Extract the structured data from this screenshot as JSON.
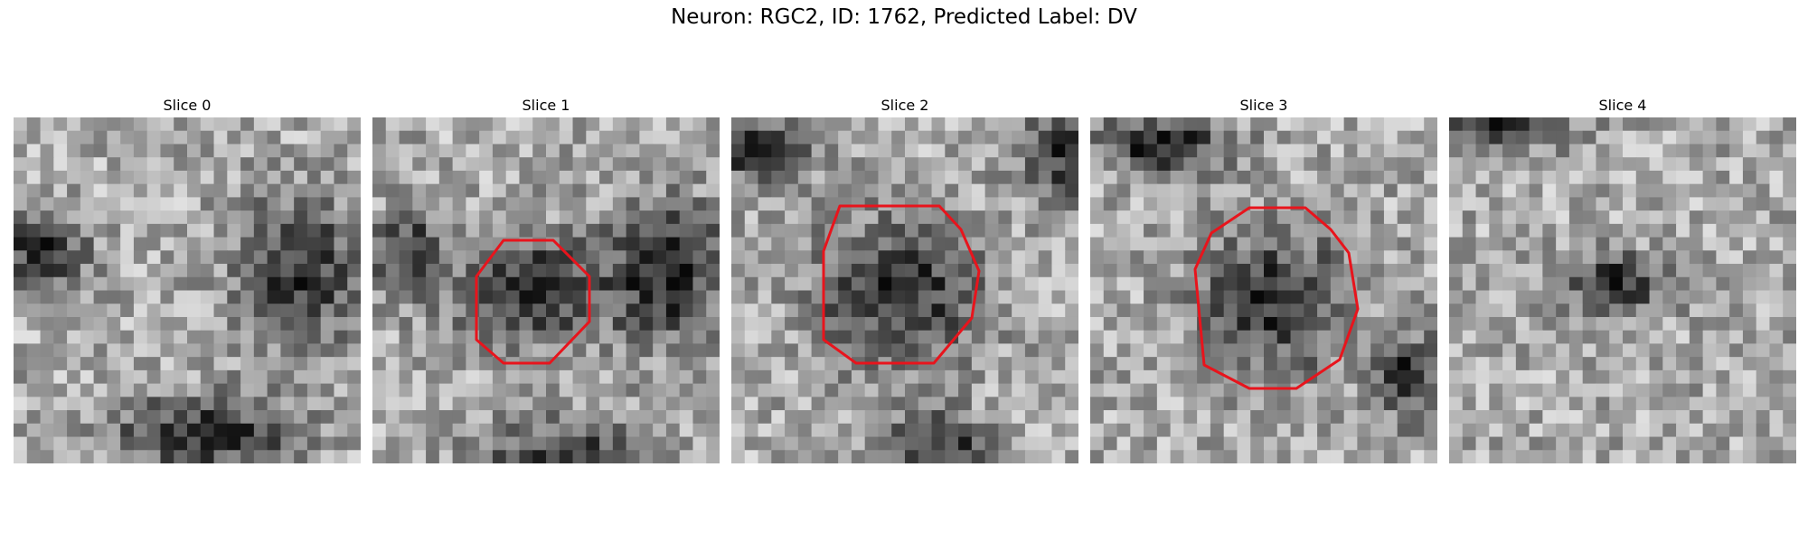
{
  "figure": {
    "title": "Neuron: RGC2, ID: 1762, Predicted Label: DV"
  },
  "panels": [
    {
      "title": "Slice 0",
      "has_outline": false,
      "dark_blobs": [
        [
          0.82,
          0.45,
          0.17,
          0.2
        ],
        [
          0.55,
          0.92,
          0.25,
          0.11
        ],
        [
          0.08,
          0.38,
          0.12,
          0.1
        ]
      ]
    },
    {
      "title": "Slice 1",
      "has_outline": true,
      "dark_blobs": [
        [
          0.45,
          0.5,
          0.2,
          0.15
        ],
        [
          0.85,
          0.45,
          0.18,
          0.2
        ],
        [
          0.55,
          1.0,
          0.22,
          0.12
        ],
        [
          0.1,
          0.4,
          0.1,
          0.12
        ]
      ]
    },
    {
      "title": "Slice 2",
      "has_outline": true,
      "dark_blobs": [
        [
          0.48,
          0.5,
          0.23,
          0.2
        ],
        [
          0.6,
          0.95,
          0.15,
          0.09
        ],
        [
          0.05,
          0.1,
          0.2,
          0.08
        ],
        [
          0.98,
          0.1,
          0.15,
          0.12
        ]
      ]
    },
    {
      "title": "Slice 3",
      "has_outline": true,
      "dark_blobs": [
        [
          0.53,
          0.53,
          0.2,
          0.2
        ],
        [
          0.2,
          0.08,
          0.2,
          0.08
        ],
        [
          0.92,
          0.75,
          0.1,
          0.12
        ]
      ]
    },
    {
      "title": "Slice 4",
      "has_outline": false,
      "dark_blobs": [
        [
          0.48,
          0.48,
          0.15,
          0.08
        ],
        [
          0.15,
          0.03,
          0.2,
          0.06
        ]
      ]
    }
  ],
  "style": {
    "outline_color": "#e8141c",
    "colormap": "gray"
  }
}
